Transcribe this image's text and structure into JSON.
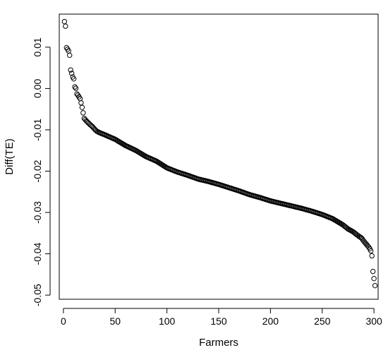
{
  "chart_data": {
    "type": "scatter",
    "title": "",
    "xlabel": "Farmers",
    "ylabel": "Diff(TE)",
    "xlim": [
      -4,
      304
    ],
    "ylim": [
      -0.051,
      0.018
    ],
    "x_ticks": [
      0,
      50,
      100,
      150,
      200,
      250,
      300
    ],
    "x_tick_labels": [
      "0",
      "50",
      "100",
      "150",
      "200",
      "250",
      "300"
    ],
    "y_ticks": [
      -0.05,
      -0.04,
      -0.03,
      -0.02,
      -0.01,
      0.0,
      0.01
    ],
    "y_tick_labels": [
      "-0.05",
      "-0.04",
      "-0.03",
      "-0.02",
      "-0.01",
      "0.00",
      "0.01"
    ],
    "grid": false,
    "legend": "none",
    "marker": "open-circle",
    "color": "#000000",
    "n_points": 300,
    "curve_points": [
      [
        1,
        0.0162
      ],
      [
        2,
        0.0151
      ],
      [
        3,
        0.0099
      ],
      [
        4,
        0.0095
      ],
      [
        5,
        0.0091
      ],
      [
        6,
        0.0081
      ],
      [
        7,
        0.0045
      ],
      [
        8,
        0.0037
      ],
      [
        9,
        0.0028
      ],
      [
        10,
        0.0024
      ],
      [
        11,
        0.0004
      ],
      [
        12,
        0.0001
      ],
      [
        13,
        -0.0013
      ],
      [
        14,
        -0.0016
      ],
      [
        15,
        -0.002
      ],
      [
        16,
        -0.0024
      ],
      [
        17,
        -0.0034
      ],
      [
        18,
        -0.0045
      ],
      [
        19,
        -0.0058
      ],
      [
        20,
        -0.0072
      ],
      [
        22,
        -0.0078
      ],
      [
        24,
        -0.0083
      ],
      [
        26,
        -0.0088
      ],
      [
        28,
        -0.0092
      ],
      [
        30,
        -0.0098
      ],
      [
        32,
        -0.0103
      ],
      [
        35,
        -0.0107
      ],
      [
        40,
        -0.0112
      ],
      [
        50,
        -0.0123
      ],
      [
        60,
        -0.0138
      ],
      [
        70,
        -0.015
      ],
      [
        80,
        -0.0165
      ],
      [
        90,
        -0.0176
      ],
      [
        100,
        -0.0192
      ],
      [
        110,
        -0.0202
      ],
      [
        120,
        -0.021
      ],
      [
        130,
        -0.0219
      ],
      [
        140,
        -0.0225
      ],
      [
        150,
        -0.0232
      ],
      [
        160,
        -0.024
      ],
      [
        170,
        -0.0248
      ],
      [
        180,
        -0.0257
      ],
      [
        190,
        -0.0264
      ],
      [
        200,
        -0.0272
      ],
      [
        210,
        -0.0278
      ],
      [
        220,
        -0.0284
      ],
      [
        230,
        -0.029
      ],
      [
        240,
        -0.0297
      ],
      [
        250,
        -0.0305
      ],
      [
        260,
        -0.0315
      ],
      [
        270,
        -0.033
      ],
      [
        275,
        -0.034
      ],
      [
        280,
        -0.0347
      ],
      [
        284,
        -0.0355
      ],
      [
        288,
        -0.0362
      ],
      [
        291,
        -0.0372
      ],
      [
        293,
        -0.0378
      ],
      [
        295,
        -0.0384
      ],
      [
        296,
        -0.0388
      ],
      [
        297,
        -0.0393
      ],
      [
        298,
        -0.0405
      ],
      [
        299,
        -0.0443
      ],
      [
        300,
        -0.046
      ],
      [
        301,
        -0.0477
      ]
    ]
  }
}
